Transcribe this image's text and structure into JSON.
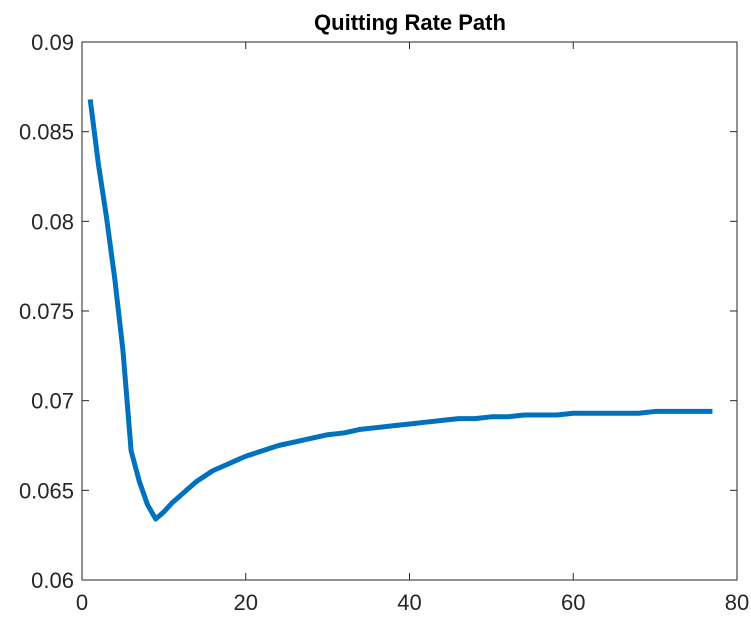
{
  "chart_data": {
    "type": "line",
    "title": "Quitting Rate Path",
    "xlabel": "",
    "ylabel": "",
    "xlim": [
      0,
      80
    ],
    "ylim": [
      0.06,
      0.09
    ],
    "xticks": [
      0,
      20,
      40,
      60,
      80
    ],
    "yticks": [
      0.06,
      0.065,
      0.07,
      0.075,
      0.08,
      0.085,
      0.09
    ],
    "xtick_labels": [
      "0",
      "20",
      "40",
      "60",
      "80"
    ],
    "ytick_labels": [
      "0.06",
      "0.065",
      "0.07",
      "0.075",
      "0.08",
      "0.085",
      "0.09"
    ],
    "grid": false,
    "series": [
      {
        "color": "#0072bd",
        "x": [
          1,
          2,
          3,
          4,
          5,
          6,
          7,
          8,
          9,
          10,
          11,
          12,
          13,
          14,
          15,
          16,
          17,
          18,
          19,
          20,
          22,
          24,
          26,
          28,
          30,
          32,
          34,
          36,
          38,
          40,
          42,
          44,
          46,
          48,
          50,
          52,
          54,
          56,
          58,
          60,
          62,
          64,
          66,
          68,
          70,
          72,
          74,
          76,
          77
        ],
        "y": [
          0.0868,
          0.0832,
          0.0802,
          0.0768,
          0.0728,
          0.0672,
          0.0655,
          0.0642,
          0.0634,
          0.0638,
          0.0643,
          0.0647,
          0.0651,
          0.0655,
          0.0658,
          0.0661,
          0.0663,
          0.0665,
          0.0667,
          0.0669,
          0.0672,
          0.0675,
          0.0677,
          0.0679,
          0.0681,
          0.0682,
          0.0684,
          0.0685,
          0.0686,
          0.0687,
          0.0688,
          0.0689,
          0.069,
          0.069,
          0.0691,
          0.0691,
          0.0692,
          0.0692,
          0.0692,
          0.0693,
          0.0693,
          0.0693,
          0.0693,
          0.0693,
          0.0694,
          0.0694,
          0.0694,
          0.0694,
          0.0694
        ]
      }
    ]
  }
}
